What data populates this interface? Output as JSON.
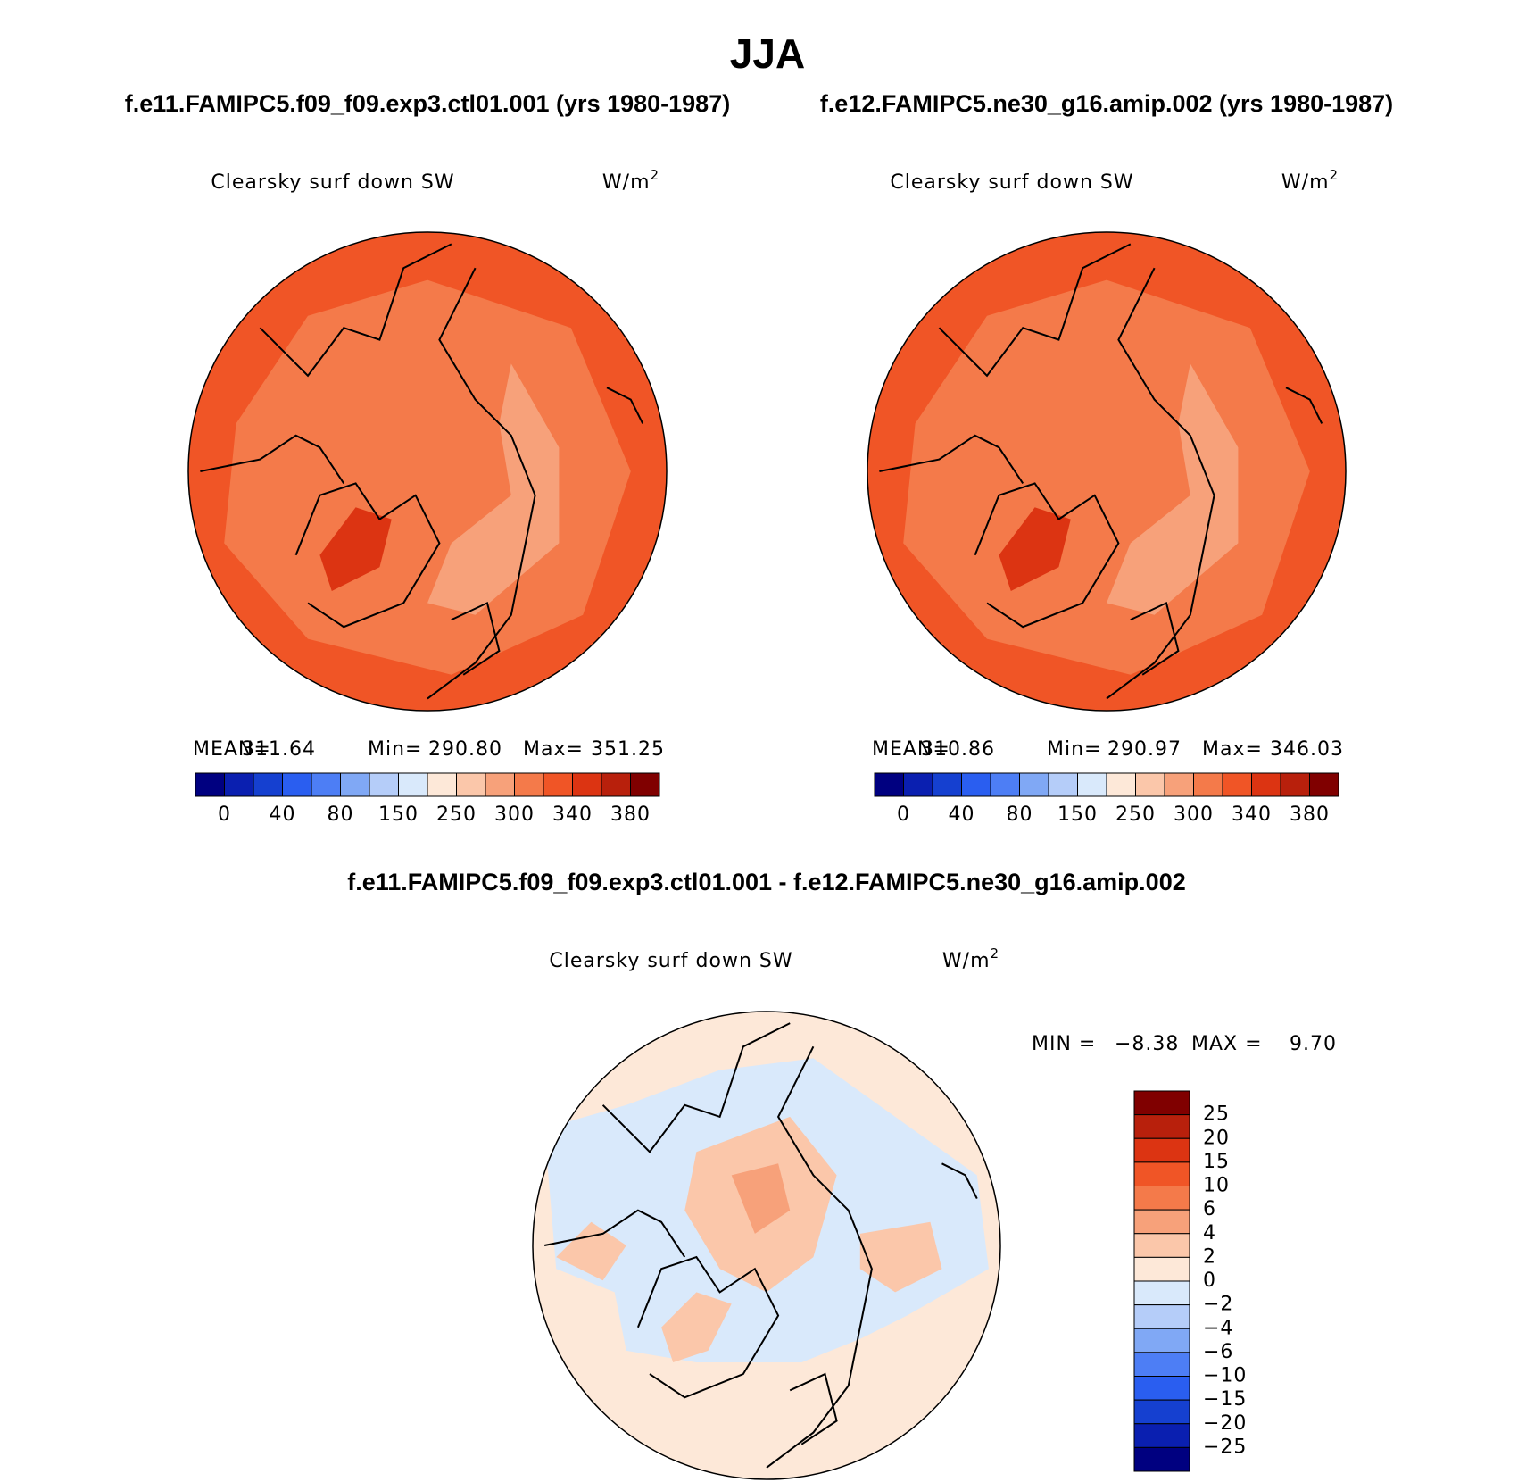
{
  "title": "JJA",
  "panels": [
    {
      "case": "f.e11.FAMIPC5.f09_f09.exp3.ctl01.001 (yrs 1980-1987)",
      "variable": "Clearsky surf down SW",
      "units": "W/m",
      "units_sup": "2",
      "stats": [
        {
          "label": "MEAN=",
          "value": "311.64"
        },
        {
          "label": "Min=",
          "value": "290.80"
        },
        {
          "label": "Max=",
          "value": "351.25"
        }
      ]
    },
    {
      "case": "f.e12.FAMIPC5.ne30_g16.amip.002 (yrs 1980-1987)",
      "variable": "Clearsky surf down SW",
      "units": "W/m",
      "units_sup": "2",
      "stats": [
        {
          "label": "MEAN=",
          "value": "310.86"
        },
        {
          "label": "Min=",
          "value": "290.97"
        },
        {
          "label": "Max=",
          "value": "346.03"
        }
      ]
    }
  ],
  "colorbar": {
    "colors": [
      "#000080",
      "#0a1fb0",
      "#1540d0",
      "#2a5ef0",
      "#4d7ef5",
      "#80a8f5",
      "#b5cdf9",
      "#d9e9fb",
      "#fde8d8",
      "#fbc7aa",
      "#f7a17a",
      "#f47a4a",
      "#f05526",
      "#dc3412",
      "#b8200c",
      "#800000"
    ],
    "labels": [
      "0",
      "40",
      "80",
      "150",
      "250",
      "300",
      "340",
      "380"
    ]
  },
  "difference": {
    "title": "f.e11.FAMIPC5.f09_f09.exp3.ctl01.001 - f.e12.FAMIPC5.ne30_g16.amip.002",
    "variable": "Clearsky surf down SW",
    "units": "W/m",
    "units_sup": "2",
    "min_label": "MIN =",
    "min": "−8.38",
    "max_label": "MAX =",
    "max": "9.70",
    "colorbar": {
      "colors": [
        "#800000",
        "#b8200c",
        "#dc3412",
        "#f05526",
        "#f47a4a",
        "#f7a17a",
        "#fbc7aa",
        "#fde8d8",
        "#d9e9fb",
        "#b5cdf9",
        "#80a8f5",
        "#4d7ef5",
        "#2a5ef0",
        "#1540d0",
        "#0a1fb0",
        "#000080"
      ],
      "labels": [
        "25",
        "20",
        "15",
        "10",
        "6",
        "4",
        "2",
        "0",
        "−2",
        "−4",
        "−6",
        "−10",
        "−15",
        "−20",
        "−25"
      ]
    }
  }
}
